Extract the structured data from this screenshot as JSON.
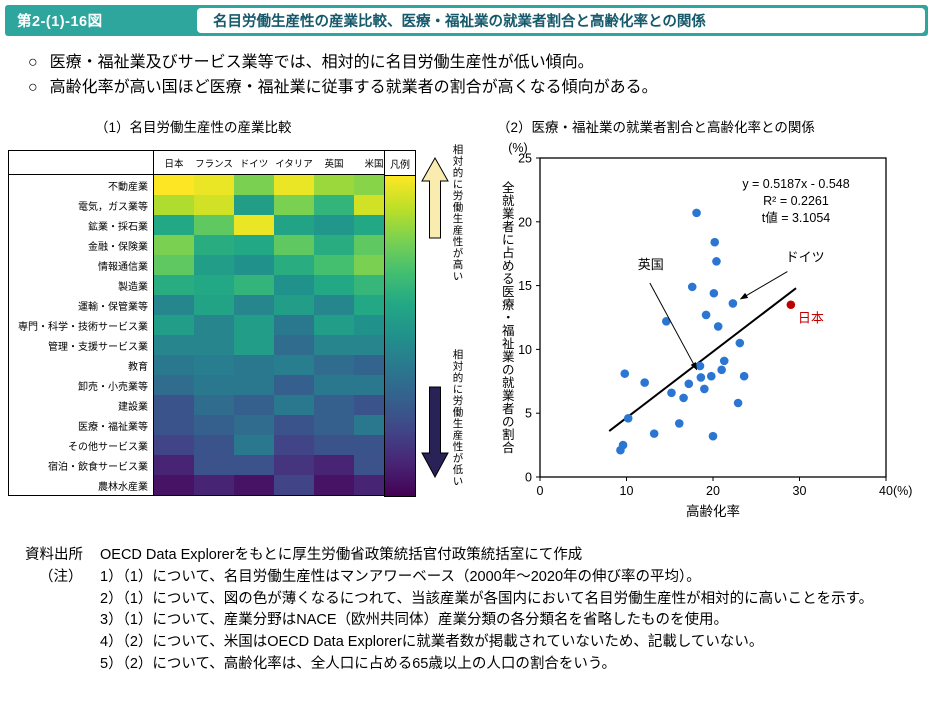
{
  "header": {
    "badge": "第2-(1)-16図",
    "title": "名目労働生産性の産業比較、医療・福祉業の就業者割合と高齢化率との関係"
  },
  "bullets": {
    "items": [
      {
        "mark": "○",
        "text": "医療・福祉業及びサービス業等では、相対的に名目労働生産性が低い傾向。"
      },
      {
        "mark": "○",
        "text": "高齢化率が高い国ほど医療・福祉業に従事する就業者の割合が高くなる傾向がある。"
      }
    ]
  },
  "colors": {
    "band": "#2ea69e",
    "title_text": "#15596b",
    "scatter_point": "#2b76d2",
    "japan_point": "#c00000",
    "arrow_up_fill": "#f9ecae",
    "arrow_down_fill": "#282256"
  },
  "chart_data": [
    {
      "type": "heatmap",
      "title": "（1）名目労働生産性の産業比較",
      "columns": [
        "日本",
        "フランス",
        "ドイツ",
        "イタリア",
        "英国",
        "米国"
      ],
      "legend_label": "凡例",
      "rows": [
        "不動産業",
        "電気，ガス業等",
        "鉱業・採石業",
        "金融・保険業",
        "情報通信業",
        "製造業",
        "運輸・保管業等",
        "専門・科学・技術サービス業",
        "管理・支援サービス業",
        "教育",
        "卸売・小売業等",
        "建設業",
        "医療・福祉業等",
        "その他サービス業",
        "宿泊・飲食サービス業",
        "農林水産業"
      ],
      "values": [
        [
          1.0,
          0.97,
          0.8,
          0.97,
          0.85,
          0.82
        ],
        [
          0.88,
          0.93,
          0.55,
          0.8,
          0.65,
          0.93
        ],
        [
          0.6,
          0.75,
          0.97,
          0.58,
          0.52,
          0.6
        ],
        [
          0.8,
          0.62,
          0.6,
          0.75,
          0.62,
          0.75
        ],
        [
          0.75,
          0.55,
          0.5,
          0.62,
          0.7,
          0.8
        ],
        [
          0.62,
          0.6,
          0.65,
          0.5,
          0.6,
          0.66
        ],
        [
          0.46,
          0.58,
          0.45,
          0.55,
          0.46,
          0.6
        ],
        [
          0.55,
          0.45,
          0.55,
          0.4,
          0.55,
          0.5
        ],
        [
          0.45,
          0.45,
          0.55,
          0.35,
          0.45,
          0.45
        ],
        [
          0.4,
          0.42,
          0.4,
          0.42,
          0.35,
          0.32
        ],
        [
          0.35,
          0.4,
          0.4,
          0.3,
          0.4,
          0.4
        ],
        [
          0.26,
          0.35,
          0.3,
          0.4,
          0.3,
          0.26
        ],
        [
          0.26,
          0.3,
          0.35,
          0.26,
          0.3,
          0.4
        ],
        [
          0.2,
          0.26,
          0.4,
          0.2,
          0.26,
          0.26
        ],
        [
          0.1,
          0.25,
          0.25,
          0.15,
          0.1,
          0.25
        ],
        [
          0.05,
          0.1,
          0.05,
          0.2,
          0.05,
          0.1
        ]
      ],
      "colormap_stops": [
        [
          0,
          "#440154"
        ],
        [
          0.1,
          "#482475"
        ],
        [
          0.2,
          "#414487"
        ],
        [
          0.3,
          "#355f8d"
        ],
        [
          0.4,
          "#2a788e"
        ],
        [
          0.5,
          "#21918c"
        ],
        [
          0.6,
          "#22a884"
        ],
        [
          0.7,
          "#44bf70"
        ],
        [
          0.8,
          "#7ad151"
        ],
        [
          0.9,
          "#bddf26"
        ],
        [
          1,
          "#fde725"
        ]
      ],
      "annotation_high": "相対的に労働生産性が高い",
      "annotation_low": "相対的に労働生産性が低い"
    },
    {
      "type": "scatter",
      "title": "（2）医療・福祉業の就業者割合と高齢化率との関係",
      "xlabel": "高齢化率",
      "ylabel": "全就業者に占める医療・福祉業の就業者の割合",
      "x_unit": "(%)",
      "y_unit": "(%)",
      "xlim": [
        0,
        40
      ],
      "ylim": [
        0,
        25
      ],
      "xticks": [
        0,
        10,
        20,
        30,
        40
      ],
      "yticks": [
        0,
        5,
        10,
        15,
        20,
        25
      ],
      "equation_lines": [
        "y = 0.5187x - 0.548",
        "R² = 0.2261",
        "t値 = 3.1054"
      ],
      "points": [
        [
          9.3,
          2.1
        ],
        [
          9.6,
          2.5
        ],
        [
          10.2,
          4.6
        ],
        [
          9.8,
          8.1
        ],
        [
          12.1,
          7.4
        ],
        [
          13.2,
          3.4
        ],
        [
          14.6,
          12.2
        ],
        [
          15.2,
          6.6
        ],
        [
          16.1,
          4.2
        ],
        [
          16.6,
          6.2
        ],
        [
          17.2,
          7.3
        ],
        [
          17.6,
          14.9
        ],
        [
          18.1,
          20.7
        ],
        [
          18.5,
          8.7
        ],
        [
          18.6,
          7.8
        ],
        [
          19.0,
          6.9
        ],
        [
          19.2,
          12.7
        ],
        [
          19.8,
          7.9
        ],
        [
          20.0,
          3.2
        ],
        [
          20.1,
          14.4
        ],
        [
          20.2,
          18.4
        ],
        [
          20.4,
          16.9
        ],
        [
          20.6,
          11.8
        ],
        [
          21.0,
          8.4
        ],
        [
          21.3,
          9.1
        ],
        [
          22.3,
          13.6
        ],
        [
          22.9,
          5.8
        ],
        [
          23.1,
          10.5
        ],
        [
          23.6,
          7.9
        ]
      ],
      "japan": {
        "label": "日本",
        "x": 29,
        "y": 13.5
      },
      "annotations": [
        {
          "label": "英国",
          "label_at": [
            11.3,
            16.3
          ],
          "line_from": [
            12.7,
            15.2
          ],
          "target": [
            18.6,
            7.8
          ]
        },
        {
          "label": "ドイツ",
          "label_at": [
            28.4,
            16.9
          ],
          "line_from": [
            28.6,
            16.1
          ],
          "target": [
            22.3,
            13.6
          ]
        }
      ],
      "trend": {
        "x1": 8,
        "y1": 3.6,
        "x2": 29.6,
        "y2": 14.8
      }
    }
  ],
  "notes": {
    "source_label": "資料出所",
    "source_text": "OECD Data Explorerをもとに厚生労働省政策統括官付政策統括室にて作成",
    "note_label": "（注）",
    "items": [
      "1）（1）について、名目労働生産性はマンアワーベース（2000年～2020年の伸び率の平均）。",
      "2）（1）について、図の色が薄くなるにつれて、当該産業が各国内において名目労働生産性が相対的に高いことを示す。",
      "3）（1）について、産業分野はNACE（欧州共同体）産業分類の各分類名を省略したものを使用。",
      "4）（2）について、米国はOECD Data Explorerに就業者数が掲載されていないため、記載していない。",
      "5）（2）について、高齢化率は、全人口に占める65歳以上の人口の割合をいう。"
    ]
  }
}
